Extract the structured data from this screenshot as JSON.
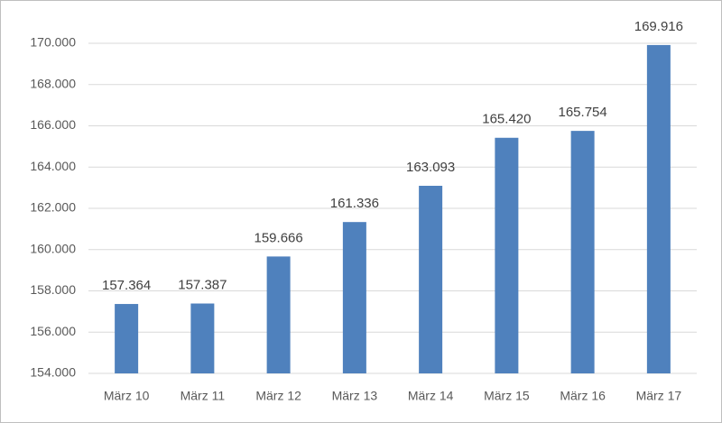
{
  "chart_data": {
    "type": "bar",
    "categories": [
      "März 10",
      "März 11",
      "März 12",
      "März 13",
      "März 14",
      "März 15",
      "März 16",
      "März 17"
    ],
    "values": [
      157364,
      157387,
      159666,
      161336,
      163093,
      165420,
      165754,
      169916
    ],
    "value_labels": [
      "157.364",
      "157.387",
      "159.666",
      "161.336",
      "163.093",
      "165.420",
      "165.754",
      "169.916"
    ],
    "color": "#4f81bd",
    "ylim": [
      154000,
      170000
    ],
    "yticks": [
      {
        "value": 154000,
        "label": "154.000"
      },
      {
        "value": 156000,
        "label": "156.000"
      },
      {
        "value": 158000,
        "label": "158.000"
      },
      {
        "value": 160000,
        "label": "160.000"
      },
      {
        "value": 162000,
        "label": "162.000"
      },
      {
        "value": 164000,
        "label": "164.000"
      },
      {
        "value": 166000,
        "label": "166.000"
      },
      {
        "value": 168000,
        "label": "168.000"
      },
      {
        "value": 170000,
        "label": "170.000"
      }
    ],
    "grid": true
  }
}
